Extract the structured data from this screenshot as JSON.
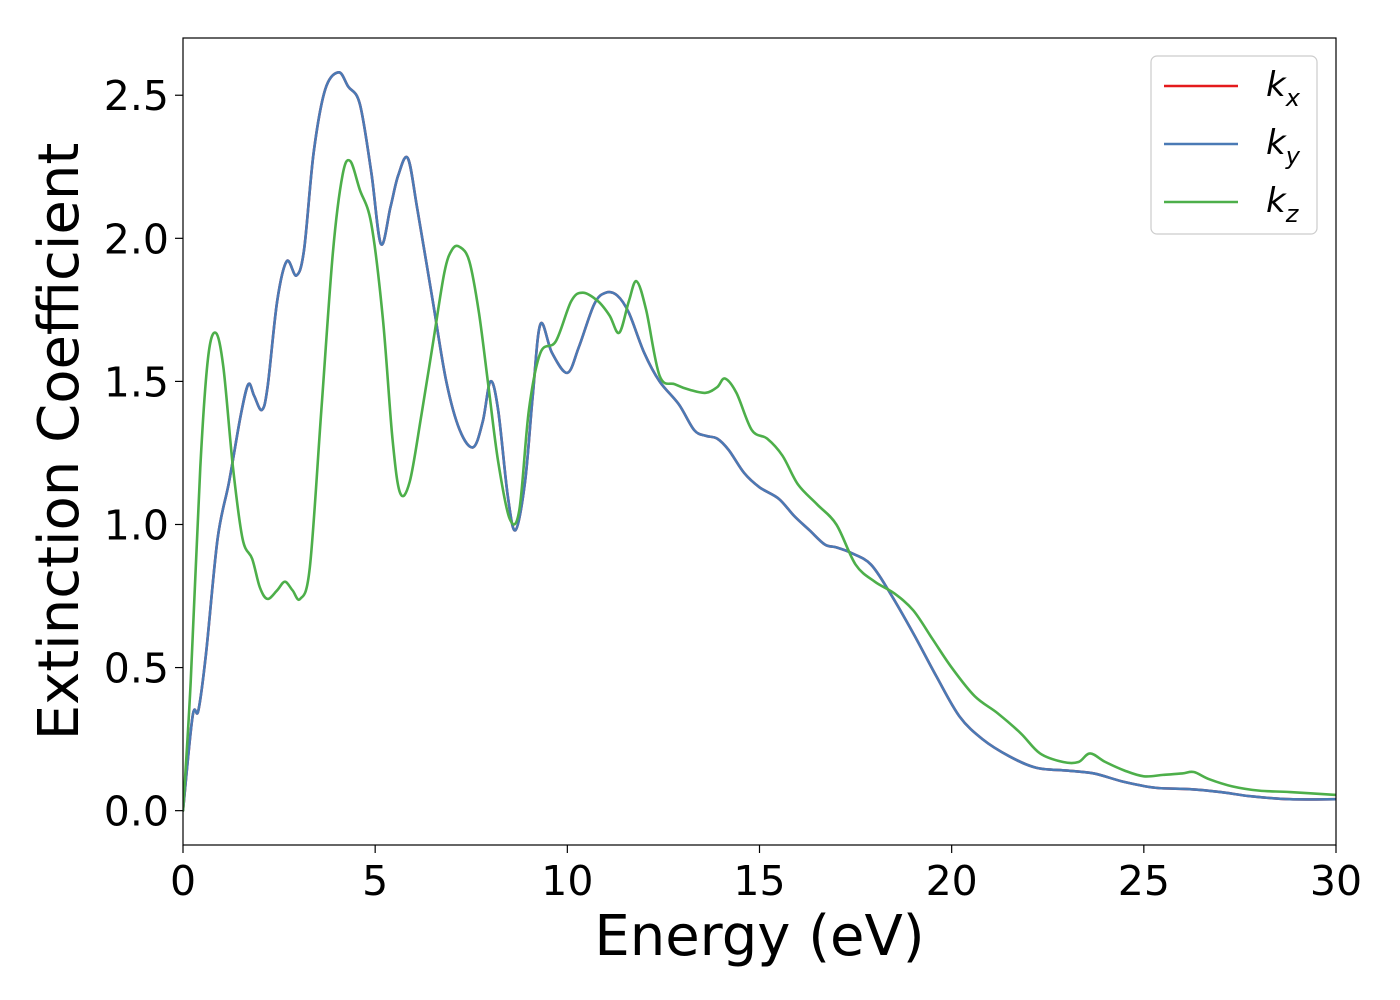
{
  "chart_data": {
    "type": "line",
    "xlabel": "Energy (eV)",
    "ylabel": "Extinction Coefficient",
    "xlim": [
      0,
      30
    ],
    "ylim": [
      -0.12,
      2.7
    ],
    "xticks": [
      "0",
      "5",
      "10",
      "15",
      "20",
      "25",
      "30"
    ],
    "yticks": [
      "0.0",
      "0.5",
      "1.0",
      "1.5",
      "2.0",
      "2.5"
    ],
    "grid": false,
    "legend_position": "top-right",
    "series": [
      {
        "name": "k_x",
        "legend": {
          "base": "k",
          "sub": "x"
        },
        "color": "#e41a1c",
        "x": [
          0,
          0.25,
          0.4,
          0.6,
          0.9,
          1.2,
          1.5,
          1.7,
          1.85,
          2.05,
          2.2,
          2.45,
          2.7,
          2.95,
          3.15,
          3.4,
          3.7,
          4.05,
          4.3,
          4.6,
          4.9,
          5.15,
          5.4,
          5.6,
          5.85,
          6.1,
          6.5,
          6.85,
          7.2,
          7.55,
          7.8,
          8.0,
          8.2,
          8.45,
          8.65,
          8.9,
          9.1,
          9.3,
          9.6,
          10.0,
          10.3,
          10.7,
          11.0,
          11.3,
          11.6,
          12.0,
          12.4,
          12.9,
          13.3,
          13.6,
          13.9,
          14.2,
          14.6,
          15.0,
          15.5,
          15.9,
          16.3,
          16.7,
          17.0,
          17.4,
          17.9,
          18.4,
          19.0,
          19.6,
          20.2,
          20.8,
          21.5,
          22.2,
          23.0,
          23.7,
          24.5,
          25.3,
          26.2,
          27.0,
          27.8,
          28.8,
          30.0
        ],
        "y": [
          0.0,
          0.33,
          0.35,
          0.55,
          0.95,
          1.15,
          1.38,
          1.49,
          1.45,
          1.4,
          1.48,
          1.78,
          1.92,
          1.87,
          1.96,
          2.3,
          2.52,
          2.58,
          2.53,
          2.47,
          2.23,
          1.98,
          2.11,
          2.22,
          2.28,
          2.1,
          1.78,
          1.5,
          1.33,
          1.27,
          1.36,
          1.5,
          1.4,
          1.1,
          0.98,
          1.15,
          1.45,
          1.7,
          1.6,
          1.53,
          1.62,
          1.77,
          1.81,
          1.8,
          1.74,
          1.6,
          1.5,
          1.42,
          1.33,
          1.31,
          1.3,
          1.26,
          1.18,
          1.13,
          1.09,
          1.03,
          0.98,
          0.93,
          0.92,
          0.9,
          0.86,
          0.76,
          0.62,
          0.47,
          0.33,
          0.25,
          0.19,
          0.15,
          0.14,
          0.13,
          0.1,
          0.08,
          0.075,
          0.065,
          0.05,
          0.04,
          0.04
        ]
      },
      {
        "name": "k_y",
        "legend": {
          "base": "k",
          "sub": "y"
        },
        "color": "#4a7ab5",
        "x": [
          0,
          0.25,
          0.4,
          0.6,
          0.9,
          1.2,
          1.5,
          1.7,
          1.85,
          2.05,
          2.2,
          2.45,
          2.7,
          2.95,
          3.15,
          3.4,
          3.7,
          4.05,
          4.3,
          4.6,
          4.9,
          5.15,
          5.4,
          5.6,
          5.85,
          6.1,
          6.5,
          6.85,
          7.2,
          7.55,
          7.8,
          8.0,
          8.2,
          8.45,
          8.65,
          8.9,
          9.1,
          9.3,
          9.6,
          10.0,
          10.3,
          10.7,
          11.0,
          11.3,
          11.6,
          12.0,
          12.4,
          12.9,
          13.3,
          13.6,
          13.9,
          14.2,
          14.6,
          15.0,
          15.5,
          15.9,
          16.3,
          16.7,
          17.0,
          17.4,
          17.9,
          18.4,
          19.0,
          19.6,
          20.2,
          20.8,
          21.5,
          22.2,
          23.0,
          23.7,
          24.5,
          25.3,
          26.2,
          27.0,
          27.8,
          28.8,
          30.0
        ],
        "y": [
          0.0,
          0.33,
          0.35,
          0.55,
          0.95,
          1.15,
          1.38,
          1.49,
          1.45,
          1.4,
          1.48,
          1.78,
          1.92,
          1.87,
          1.96,
          2.3,
          2.52,
          2.58,
          2.53,
          2.47,
          2.23,
          1.98,
          2.11,
          2.22,
          2.28,
          2.1,
          1.78,
          1.5,
          1.33,
          1.27,
          1.36,
          1.5,
          1.4,
          1.1,
          0.98,
          1.15,
          1.45,
          1.7,
          1.6,
          1.53,
          1.62,
          1.77,
          1.81,
          1.8,
          1.74,
          1.6,
          1.5,
          1.42,
          1.33,
          1.31,
          1.3,
          1.26,
          1.18,
          1.13,
          1.09,
          1.03,
          0.98,
          0.93,
          0.92,
          0.9,
          0.86,
          0.76,
          0.62,
          0.47,
          0.33,
          0.25,
          0.19,
          0.15,
          0.14,
          0.13,
          0.1,
          0.08,
          0.075,
          0.065,
          0.05,
          0.04,
          0.04
        ]
      },
      {
        "name": "k_z",
        "legend": {
          "base": "k",
          "sub": "z"
        },
        "color": "#4daf4a",
        "x": [
          0,
          0.2,
          0.45,
          0.65,
          0.85,
          1.05,
          1.3,
          1.55,
          1.8,
          2.0,
          2.2,
          2.45,
          2.65,
          2.85,
          3.05,
          3.3,
          3.6,
          3.9,
          4.15,
          4.35,
          4.6,
          4.9,
          5.2,
          5.45,
          5.65,
          5.9,
          6.2,
          6.5,
          6.8,
          7.0,
          7.2,
          7.45,
          7.7,
          7.95,
          8.2,
          8.5,
          8.75,
          9.0,
          9.3,
          9.7,
          10.1,
          10.4,
          10.8,
          11.1,
          11.35,
          11.6,
          11.8,
          12.05,
          12.4,
          12.8,
          13.2,
          13.6,
          13.9,
          14.1,
          14.4,
          14.8,
          15.2,
          15.6,
          16.0,
          16.5,
          17.0,
          17.5,
          18.0,
          18.5,
          19.0,
          19.5,
          20.0,
          20.6,
          21.2,
          21.8,
          22.3,
          22.9,
          23.3,
          23.6,
          24.0,
          24.5,
          25.0,
          25.5,
          26.0,
          26.3,
          26.7,
          27.3,
          28.0,
          28.8,
          30.0
        ],
        "y": [
          0.0,
          0.45,
          1.2,
          1.58,
          1.67,
          1.55,
          1.2,
          0.95,
          0.88,
          0.78,
          0.74,
          0.77,
          0.8,
          0.77,
          0.74,
          0.85,
          1.4,
          1.95,
          2.22,
          2.27,
          2.17,
          2.05,
          1.72,
          1.3,
          1.11,
          1.15,
          1.38,
          1.63,
          1.88,
          1.96,
          1.97,
          1.92,
          1.74,
          1.48,
          1.22,
          1.02,
          1.05,
          1.4,
          1.6,
          1.64,
          1.78,
          1.81,
          1.78,
          1.73,
          1.67,
          1.78,
          1.85,
          1.75,
          1.52,
          1.49,
          1.47,
          1.46,
          1.48,
          1.51,
          1.46,
          1.33,
          1.3,
          1.24,
          1.14,
          1.07,
          1.0,
          0.86,
          0.8,
          0.76,
          0.7,
          0.6,
          0.5,
          0.4,
          0.34,
          0.27,
          0.2,
          0.17,
          0.17,
          0.2,
          0.17,
          0.14,
          0.12,
          0.125,
          0.13,
          0.135,
          0.11,
          0.085,
          0.07,
          0.065,
          0.055
        ]
      }
    ]
  }
}
